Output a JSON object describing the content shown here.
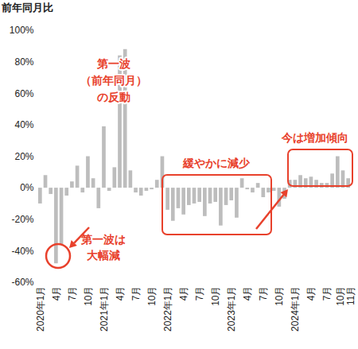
{
  "chart_data": {
    "type": "bar",
    "title": "前年同月比",
    "categories": [
      "2020年1月",
      null,
      null,
      "4月",
      null,
      null,
      "7月",
      null,
      null,
      "10月",
      null,
      null,
      "2021年1月",
      null,
      null,
      "4月",
      null,
      null,
      "7月",
      null,
      null,
      "10月",
      null,
      null,
      "2022年1月",
      null,
      null,
      "4月",
      null,
      null,
      "7月",
      null,
      null,
      "10月",
      null,
      null,
      "2023年1月",
      null,
      null,
      "4月",
      null,
      null,
      "7月",
      null,
      null,
      "10月",
      null,
      null,
      "2024年1月",
      null,
      null,
      "4月",
      null,
      null,
      "7月",
      null,
      null,
      "10月",
      "11月"
    ],
    "values": [
      -10,
      8,
      -4,
      -48,
      -36,
      -5,
      4,
      14,
      -3,
      20,
      6,
      -13,
      39,
      -2,
      13,
      84,
      88,
      11,
      -3,
      -5,
      -2,
      -1,
      5,
      20,
      -14,
      -21,
      -13,
      -17,
      -11,
      -10,
      -9,
      -18,
      -10,
      -9,
      -24,
      -11,
      -8,
      -19,
      6,
      -1,
      -3,
      3,
      -6,
      -3,
      -2,
      -12,
      -7,
      5,
      5,
      8,
      6,
      7,
      5,
      3,
      3,
      9,
      20,
      11,
      6
    ],
    "color": "#bdbdbd",
    "ylim": [
      -60,
      100
    ],
    "yticks": [
      {
        "value": -60,
        "label": "-60%"
      },
      {
        "value": -40,
        "label": "-40%"
      },
      {
        "value": -20,
        "label": "-20%"
      },
      {
        "value": 0,
        "label": "0%"
      },
      {
        "value": 20,
        "label": "20%"
      },
      {
        "value": 40,
        "label": "40%"
      },
      {
        "value": 60,
        "label": "60%"
      },
      {
        "value": 80,
        "label": "80%"
      },
      {
        "value": 100,
        "label": "100%"
      }
    ],
    "grid": false,
    "annotations": [
      "第一波は\n大幅減",
      "第一波\n（前年同月）\nの反動",
      "緩やかに減少",
      "今は増加傾向"
    ]
  }
}
